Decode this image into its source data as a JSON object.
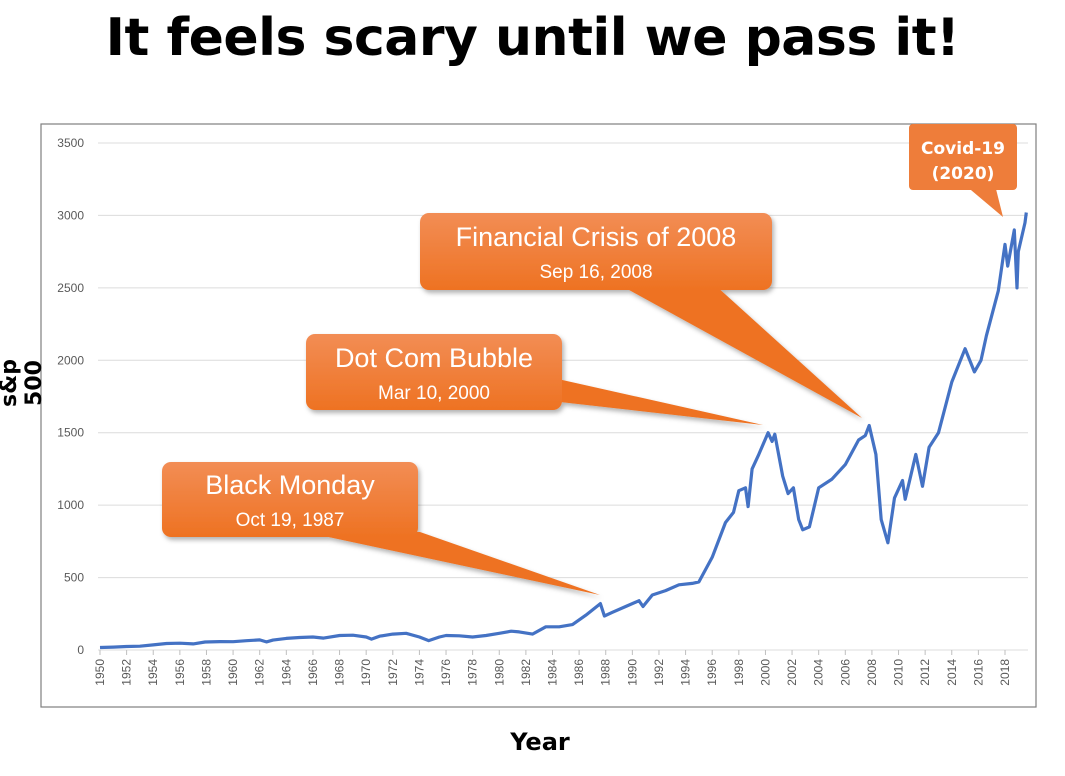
{
  "title": "It feels scary until we pass it!",
  "chart_data": {
    "type": "line",
    "title": "It feels scary until we pass it!",
    "xlabel": "Year",
    "ylabel": "s&p 500",
    "ylim": [
      0,
      3500
    ],
    "xlim": [
      1950,
      2019.7
    ],
    "grid": true,
    "y_ticks": [
      "0",
      "500",
      "1000",
      "1500",
      "2000",
      "2500",
      "3000",
      "3500"
    ],
    "x_ticks": [
      "1950",
      "1952",
      "1954",
      "1956",
      "1958",
      "1960",
      "1962",
      "1964",
      "1966",
      "1968",
      "1970",
      "1972",
      "1974",
      "1976",
      "1978",
      "1980",
      "1982",
      "1984",
      "1986",
      "1988",
      "1990",
      "1992",
      "1994",
      "1996",
      "1998",
      "2000",
      "2002",
      "2004",
      "2006",
      "2008",
      "2010",
      "2012",
      "2014",
      "2016",
      "2018"
    ],
    "series": [
      {
        "name": "S&P 500",
        "color": "#4472c4",
        "x": [
          1950,
          1951,
          1952,
          1953,
          1954,
          1955,
          1956,
          1957,
          1957.9,
          1959,
          1960,
          1961,
          1962,
          1962.5,
          1963,
          1964,
          1965,
          1966,
          1966.8,
          1968,
          1969,
          1970,
          1970.4,
          1971,
          1972,
          1973,
          1974,
          1974.7,
          1975.5,
          1976,
          1977,
          1978,
          1979,
          1980,
          1980.9,
          1981.5,
          1982.5,
          1983.5,
          1984.5,
          1985.5,
          1986.5,
          1987.6,
          1987.9,
          1988.5,
          1989.5,
          1990.5,
          1990.8,
          1991.5,
          1992.5,
          1993.5,
          1994.5,
          1995,
          1996,
          1997,
          1997.6,
          1998,
          1998.5,
          1998.7,
          1999,
          1999.5,
          2000.2,
          2000.5,
          2000.7,
          2001.3,
          2001.7,
          2002.1,
          2002.5,
          2002.8,
          2003.3,
          2004,
          2005,
          2006,
          2007,
          2007.5,
          2007.8,
          2008.3,
          2008.7,
          2009.2,
          2009.7,
          2010.3,
          2010.5,
          2011.3,
          2011.8,
          2012.3,
          2013,
          2014,
          2015,
          2015.7,
          2016.2,
          2016.6,
          2017.5,
          2018,
          2018.2,
          2018.7,
          2018.9,
          2019,
          2019.5,
          2019.6
        ],
        "values": [
          17,
          20,
          24,
          26,
          35,
          45,
          47,
          42,
          55,
          58,
          57,
          64,
          70,
          56,
          68,
          80,
          86,
          90,
          82,
          100,
          102,
          90,
          75,
          95,
          110,
          115,
          90,
          65,
          90,
          100,
          98,
          90,
          100,
          115,
          130,
          125,
          110,
          160,
          160,
          175,
          240,
          320,
          235,
          260,
          300,
          340,
          300,
          380,
          410,
          450,
          460,
          470,
          640,
          880,
          950,
          1100,
          1120,
          990,
          1250,
          1350,
          1500,
          1440,
          1490,
          1200,
          1080,
          1120,
          900,
          830,
          850,
          1120,
          1180,
          1280,
          1450,
          1480,
          1550,
          1350,
          900,
          740,
          1050,
          1170,
          1040,
          1350,
          1130,
          1400,
          1500,
          1850,
          2080,
          1920,
          2000,
          2170,
          2480,
          2800,
          2650,
          2900,
          2500,
          2750,
          2950,
          3020
        ]
      }
    ],
    "annotations": [
      {
        "title": "Black Monday",
        "date": "Oct 19, 1987"
      },
      {
        "title": "Dot Com Bubble",
        "date": "Mar 10, 2000"
      },
      {
        "title": "Financial Crisis of 2008",
        "date": "Sep 16, 2008"
      },
      {
        "title": "Covid-19",
        "date": "(2020)"
      }
    ]
  }
}
